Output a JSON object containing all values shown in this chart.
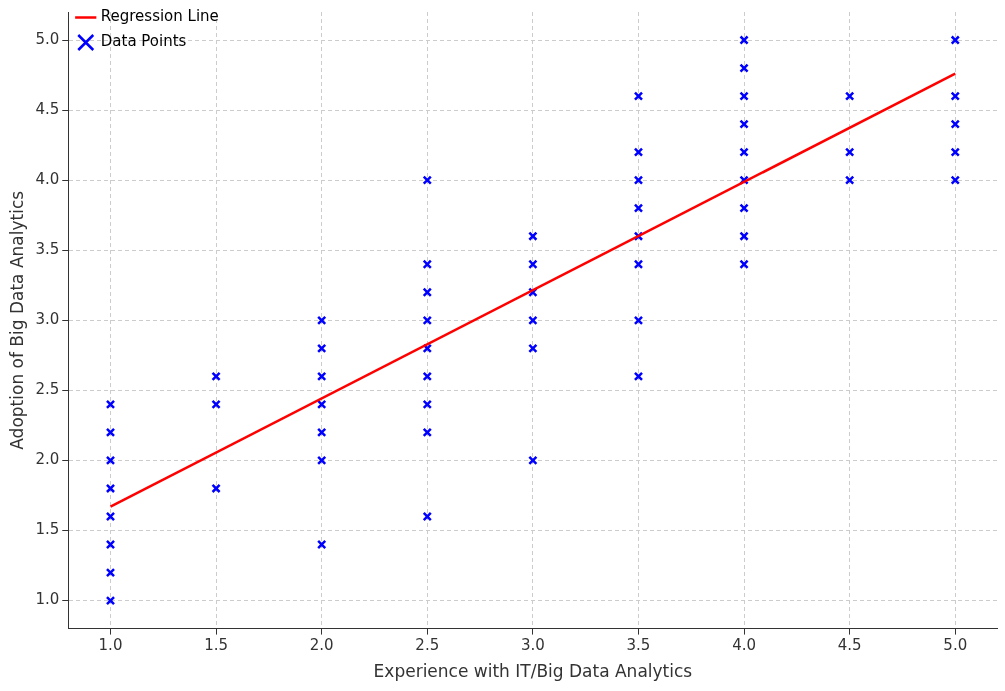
{
  "chart_data": {
    "type": "scatter",
    "xlabel": "Experience with IT/Big Data Analytics",
    "ylabel": "Adoption of Big Data Analytics",
    "xlim": [
      0.8,
      5.2
    ],
    "xticks": [
      {
        "value": 1,
        "label": "1.0"
      },
      {
        "value": 1.5,
        "label": "1.5"
      },
      {
        "value": 2,
        "label": "2.0"
      },
      {
        "value": 2.5,
        "label": "2.5"
      },
      {
        "value": 3,
        "label": "3.0"
      },
      {
        "value": 3.5,
        "label": "3.5"
      },
      {
        "value": 4,
        "label": "4.0"
      },
      {
        "value": 4.5,
        "label": "4.5"
      },
      {
        "value": 5,
        "label": "5.0"
      }
    ],
    "ylim": [
      0.8,
      5.2
    ],
    "yticks": [
      {
        "value": 1,
        "label": "1.0"
      },
      {
        "value": 1.5,
        "label": "1.5"
      },
      {
        "value": 2,
        "label": "2.0"
      },
      {
        "value": 2.5,
        "label": "2.5"
      },
      {
        "value": 3,
        "label": "3.0"
      },
      {
        "value": 3.5,
        "label": "3.5"
      },
      {
        "value": 4,
        "label": "4.0"
      },
      {
        "value": 4.5,
        "label": "4.5"
      },
      {
        "value": 5,
        "label": "5.0"
      }
    ],
    "grid": true,
    "legend": "top left",
    "series": [
      {
        "name": "Regression Line",
        "type": "line",
        "color": "#ff0000",
        "line_style": "solid",
        "marker": "none",
        "x": [
          1,
          5
        ],
        "values": [
          1.67,
          4.76
        ]
      },
      {
        "name": "Data Points",
        "type": "scatter",
        "color": "#0000ff",
        "marker": "cross",
        "x": [
          1,
          1,
          1,
          1,
          1,
          1,
          1,
          1,
          1.5,
          1.5,
          1.5,
          2,
          2,
          2,
          2,
          2,
          2,
          2,
          2.5,
          2.5,
          2.5,
          2.5,
          2.5,
          2.5,
          2.5,
          2.5,
          2.5,
          3,
          3,
          3,
          3,
          3,
          3,
          3.5,
          3.5,
          3.5,
          3.5,
          3.5,
          3.5,
          3.5,
          3.5,
          4,
          4,
          4,
          4,
          4,
          4,
          4,
          4,
          4,
          4.5,
          4.5,
          4.5,
          5,
          5,
          5,
          5,
          5
        ],
        "values": [
          2.4,
          2.2,
          2.0,
          1.8,
          1.6,
          1.4,
          1.2,
          1.0,
          2.6,
          2.4,
          1.8,
          3.0,
          2.8,
          2.6,
          2.4,
          2.2,
          2.0,
          1.4,
          4.0,
          3.4,
          3.2,
          3.0,
          2.8,
          2.6,
          2.4,
          2.2,
          1.6,
          3.6,
          3.4,
          3.2,
          3.0,
          2.8,
          2.0,
          4.6,
          4.2,
          4.0,
          3.8,
          3.6,
          3.4,
          3.0,
          2.6,
          5.0,
          4.8,
          4.6,
          4.4,
          4.2,
          4.0,
          3.8,
          3.6,
          3.4,
          4.6,
          4.2,
          4.0,
          5.0,
          4.6,
          4.4,
          4.2,
          4.0
        ]
      }
    ]
  }
}
